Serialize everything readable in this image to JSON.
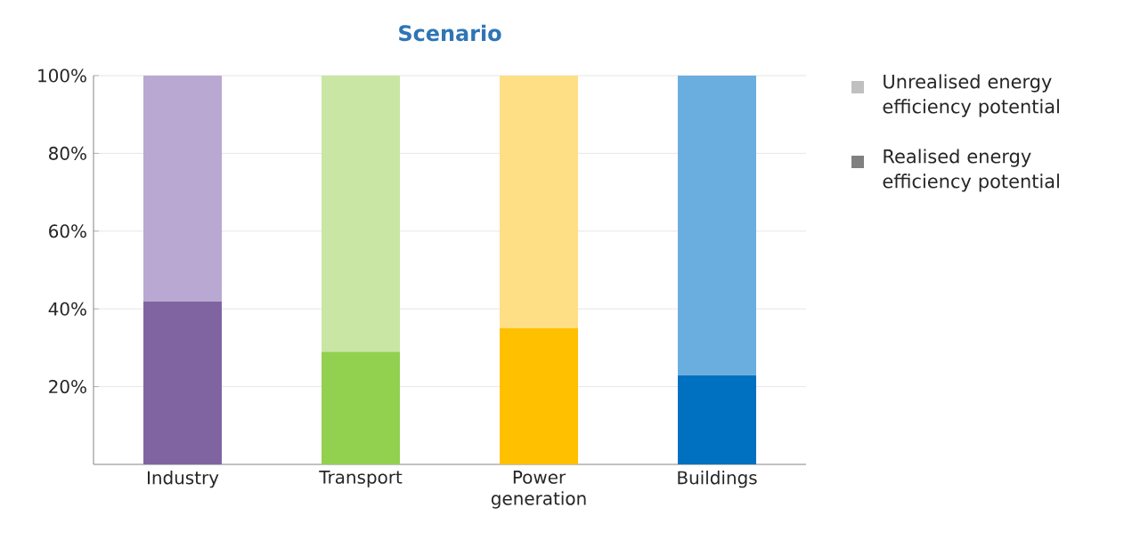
{
  "chart_data": {
    "type": "bar",
    "title": "Scenario",
    "categories": [
      "Industry",
      "Transport",
      "Power generation",
      "Buildings"
    ],
    "stacked": true,
    "series": [
      {
        "name": "Realised energy efficiency potential",
        "color": "#808080",
        "colors": [
          "#8064a2",
          "#92d050",
          "#ffc000",
          "#0070c0"
        ],
        "values": [
          42,
          29,
          35,
          23
        ]
      },
      {
        "name": "Unrealised energy efficiency potential",
        "color": "#c0c0c0",
        "colors": [
          "#b9a8d2",
          "#c9e6a4",
          "#ffdf85",
          "#6aaee0"
        ],
        "values": [
          58,
          71,
          65,
          77
        ]
      }
    ],
    "ylim": [
      0,
      100
    ],
    "yticks": [
      {
        "value": 20,
        "label": "20%"
      },
      {
        "value": 40,
        "label": "40%"
      },
      {
        "value": 60,
        "label": "60%"
      },
      {
        "value": 80,
        "label": "80%"
      },
      {
        "value": 100,
        "label": "100%"
      }
    ],
    "grid": "y",
    "legend": "top right"
  }
}
